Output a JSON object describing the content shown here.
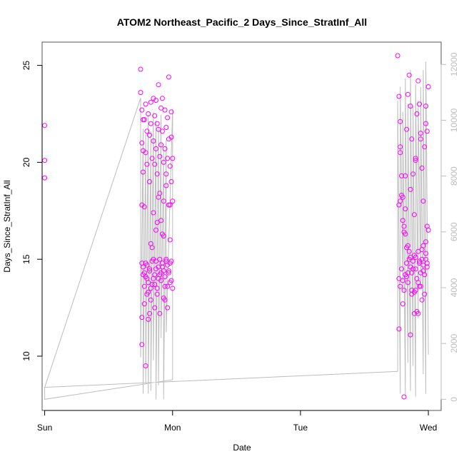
{
  "chart_data": {
    "type": "scatter",
    "title": "ATOM2 Northeast_Pacific_2 Days_Since_StratInf_All",
    "xlabel": "Date",
    "ylabel": "Days_Since_StratInf_All",
    "x_ticks": [
      "Sun",
      "Mon",
      "Tue",
      "Wed"
    ],
    "y_ticks": [
      10,
      15,
      20,
      25
    ],
    "y2_ticks": [
      0,
      2000,
      4000,
      6000,
      8000,
      10000,
      12000
    ],
    "xlim": [
      -0.02,
      3.1
    ],
    "ylim": [
      7.2,
      26.2
    ],
    "y2lim": [
      -400,
      12800
    ],
    "grid": false,
    "colors": {
      "points": "#ff00ff",
      "line": "#bdbdbd",
      "right_axis": "#bdbdbd"
    },
    "series": [
      {
        "type": "scatter",
        "x": [
          0.0,
          0.0,
          0.0,
          0.75,
          0.75,
          0.76,
          0.76,
          0.77,
          0.77,
          0.76,
          0.77,
          0.78,
          0.78,
          0.79,
          0.79,
          0.8,
          0.8,
          0.81,
          0.82,
          0.82,
          0.83,
          0.83,
          0.84,
          0.85,
          0.85,
          0.86,
          0.86,
          0.87,
          0.87,
          0.88,
          0.88,
          0.89,
          0.89,
          0.9,
          0.9,
          0.91,
          0.91,
          0.92,
          0.92,
          0.93,
          0.93,
          0.94,
          0.94,
          0.95,
          0.95,
          0.96,
          0.96,
          0.97,
          0.97,
          0.98,
          0.98,
          0.99,
          0.99,
          1.0,
          1.0,
          0.76,
          0.77,
          0.78,
          0.79,
          0.8,
          0.81,
          0.82,
          0.83,
          0.84,
          0.85,
          0.86,
          0.87,
          0.88,
          0.89,
          0.9,
          0.91,
          0.92,
          0.93,
          0.94,
          0.95,
          0.96,
          0.97,
          0.98,
          0.99,
          0.77,
          0.78,
          0.79,
          0.8,
          0.81,
          0.82,
          0.83,
          0.84,
          0.85,
          0.86,
          0.87,
          0.88,
          0.89,
          0.9,
          0.91,
          0.92,
          0.93,
          0.94,
          0.95,
          0.96,
          0.97,
          0.98,
          0.99,
          0.76,
          0.78,
          0.8,
          0.82,
          0.84,
          0.86,
          0.88,
          0.9,
          0.92,
          0.94,
          0.96,
          0.98,
          1.0,
          0.76,
          0.79,
          0.81,
          0.83,
          0.85,
          0.87,
          0.89,
          0.91,
          0.93,
          0.95,
          0.97,
          0.99,
          2.76,
          2.77,
          2.78,
          2.78,
          2.79,
          2.8,
          2.81,
          2.82,
          2.83,
          2.84,
          2.85,
          2.86,
          2.87,
          2.88,
          2.89,
          2.9,
          2.91,
          2.92,
          2.93,
          2.94,
          2.95,
          2.96,
          2.97,
          2.98,
          2.99,
          3.0,
          2.77,
          2.78,
          2.79,
          2.8,
          2.81,
          2.82,
          2.83,
          2.84,
          2.85,
          2.86,
          2.87,
          2.88,
          2.89,
          2.9,
          2.91,
          2.92,
          2.93,
          2.94,
          2.95,
          2.96,
          2.97,
          2.98,
          2.99,
          2.77,
          2.79,
          2.81,
          2.83,
          2.85,
          2.87,
          2.89,
          2.91,
          2.93,
          2.95,
          2.97,
          2.99,
          2.78,
          2.8,
          2.82,
          2.84,
          2.86,
          2.88,
          2.9,
          2.92,
          2.94,
          2.96,
          2.98,
          3.0,
          2.77,
          2.8,
          2.83,
          2.86,
          2.89,
          2.92,
          2.95,
          2.98,
          2.81,
          2.84,
          2.87,
          2.9,
          2.93,
          2.96,
          2.99,
          2.78,
          2.82,
          2.86,
          2.9,
          2.94,
          2.98
        ],
        "y": [
          21.9,
          20.1,
          19.2,
          24.8,
          23.6,
          22.7,
          21.0,
          22.2,
          20.6,
          17.8,
          19.5,
          22.2,
          17.7,
          23.0,
          20.5,
          21.6,
          19.9,
          22.5,
          21.4,
          19.0,
          23.1,
          22.0,
          20.2,
          23.3,
          21.1,
          22.4,
          19.9,
          23.2,
          20.7,
          22.0,
          19.4,
          24.0,
          21.7,
          20.3,
          18.4,
          22.8,
          20.9,
          23.3,
          21.6,
          20.0,
          18.0,
          22.7,
          20.7,
          21.8,
          19.4,
          22.3,
          20.2,
          24.4,
          21.2,
          19.8,
          17.8,
          22.6,
          21.3,
          20.2,
          18.0,
          14.8,
          14.6,
          14.3,
          14.1,
          14.7,
          13.8,
          14.4,
          13.5,
          14.9,
          14.0,
          13.7,
          14.5,
          13.2,
          14.6,
          14.2,
          13.9,
          14.8,
          14.4,
          13.6,
          15.0,
          14.7,
          14.3,
          13.8,
          14.9,
          14.2,
          13.6,
          14.8,
          14.0,
          13.3,
          14.5,
          12.9,
          13.7,
          15.0,
          14.2,
          14.9,
          13.5,
          14.0,
          15.0,
          14.3,
          14.6,
          13.0,
          14.1,
          14.9,
          13.6,
          14.4,
          14.8,
          13.9,
          12.0,
          12.7,
          13.2,
          12.2,
          15.6,
          12.5,
          16.9,
          12.2,
          16.3,
          12.9,
          12.5,
          16.0,
          13.5,
          10.6,
          9.5,
          11.9,
          15.8,
          17.4,
          16.5,
          18.2,
          17.0,
          16.2,
          18.8,
          17.8,
          19.0,
          25.5,
          23.4,
          22.1,
          20.5,
          19.3,
          18.2,
          16.4,
          17.6,
          21.7,
          23.5,
          24.5,
          22.9,
          21.2,
          19.4,
          17.3,
          20.2,
          22.5,
          24.2,
          23.0,
          21.5,
          19.7,
          18.0,
          20.8,
          22.9,
          21.6,
          23.9,
          14.0,
          13.6,
          14.5,
          13.9,
          13.4,
          14.2,
          14.8,
          13.8,
          15.4,
          14.6,
          13.2,
          14.9,
          15.2,
          14.5,
          14.0,
          15.4,
          14.8,
          14.3,
          15.0,
          14.7,
          14.2,
          15.0,
          14.6,
          17.8,
          18.3,
          16.7,
          15.6,
          15.0,
          14.3,
          13.3,
          12.3,
          13.6,
          12.9,
          13.2,
          14.8,
          18.0,
          17.0,
          16.3,
          15.7,
          15.1,
          14.5,
          13.4,
          12.2,
          13.6,
          14.4,
          15.3,
          16.5,
          11.4,
          12.7,
          14.1,
          11.1,
          12.2,
          13.8,
          15.5,
          15.9,
          7.9,
          14.3,
          13.4,
          15.1,
          14.9,
          15.7,
          16.7,
          20.8,
          19.3,
          18.6,
          20.1,
          21.2,
          22.0
        ]
      },
      {
        "type": "line",
        "axis": "right",
        "x": [
          0.0,
          0.0,
          1.0,
          1.0,
          0.95,
          0.95,
          0.93,
          0.93,
          0.91,
          0.91,
          0.89,
          0.89,
          0.87,
          0.87,
          0.85,
          0.85,
          0.83,
          0.83,
          0.81,
          0.81,
          0.79,
          0.79,
          0.77,
          0.77,
          0.75,
          0.75,
          0.0,
          2.76,
          2.76,
          2.78,
          2.78,
          2.8,
          2.8,
          2.82,
          2.82,
          2.84,
          2.84,
          2.86,
          2.86,
          2.88,
          2.88,
          2.9,
          2.9,
          2.92,
          2.92,
          2.94,
          2.94,
          2.96,
          2.96,
          2.98,
          2.98,
          3.0,
          3.0
        ],
        "y": [
          430,
          0,
          700,
          10400,
          2400,
          9300,
          0,
          8900,
          2200,
          10200,
          500,
          9800,
          0,
          10000,
          1400,
          10300,
          300,
          9600,
          200,
          10200,
          600,
          9500,
          200,
          9700,
          1500,
          10800,
          430,
          1000,
          10700,
          200,
          11200,
          3900,
          10300,
          100,
          11500,
          1300,
          10600,
          300,
          11800,
          1200,
          10500,
          100,
          11300,
          2900,
          10700,
          4000,
          11200,
          900,
          11800,
          200,
          12100,
          1600,
          1700
        ]
      }
    ]
  }
}
